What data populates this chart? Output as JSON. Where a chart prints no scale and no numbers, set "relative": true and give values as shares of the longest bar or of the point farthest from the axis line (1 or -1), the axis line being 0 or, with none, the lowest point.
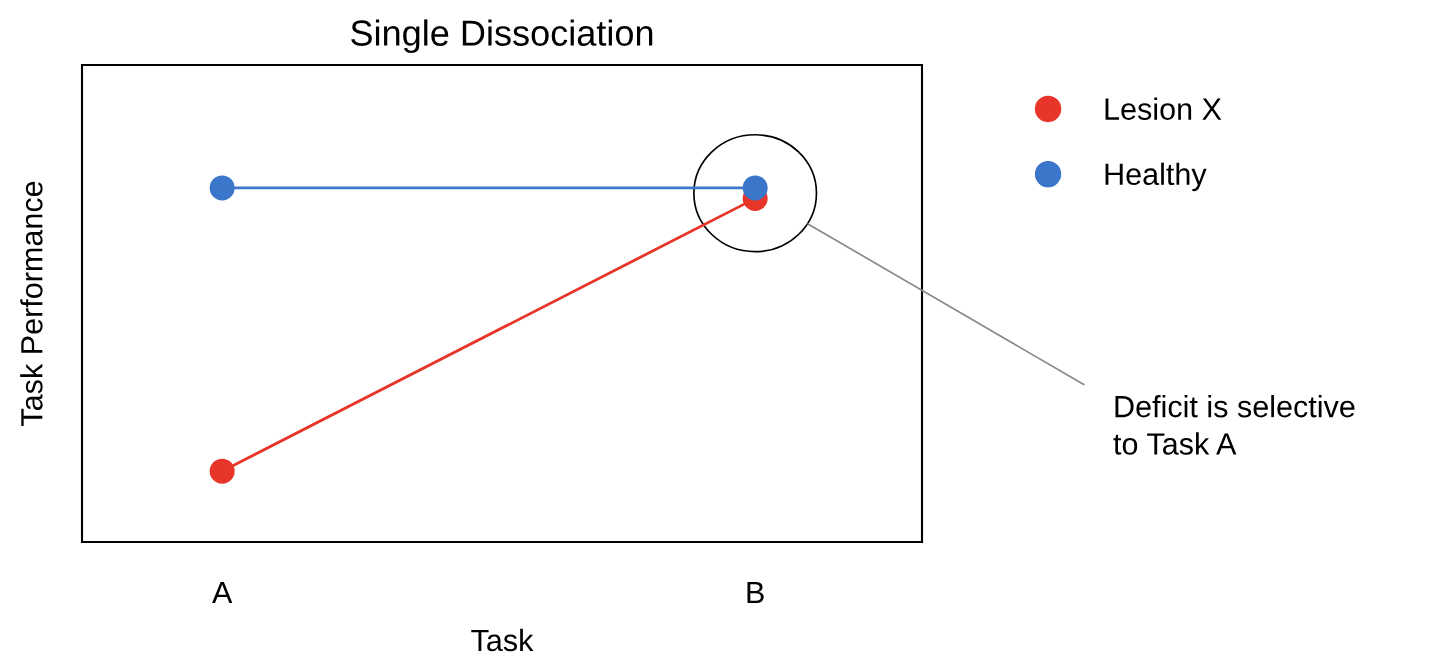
{
  "chart_data": {
    "type": "line",
    "title": "Single Dissociation",
    "xlabel": "Task",
    "ylabel": "Task Performance",
    "categories": [
      "A",
      "B"
    ],
    "relative": true,
    "series": [
      {
        "name": "Lesion X",
        "color": "#e8352a",
        "values": [
          0.2,
          0.97
        ]
      },
      {
        "name": "Healthy",
        "color": "#3a76c9",
        "values": [
          1.0,
          1.0
        ]
      }
    ],
    "annotations": [
      "Deficit is selective\nto Task A"
    ],
    "marker": "circle",
    "line_style": "solid",
    "legend": "top right",
    "grid": false
  }
}
